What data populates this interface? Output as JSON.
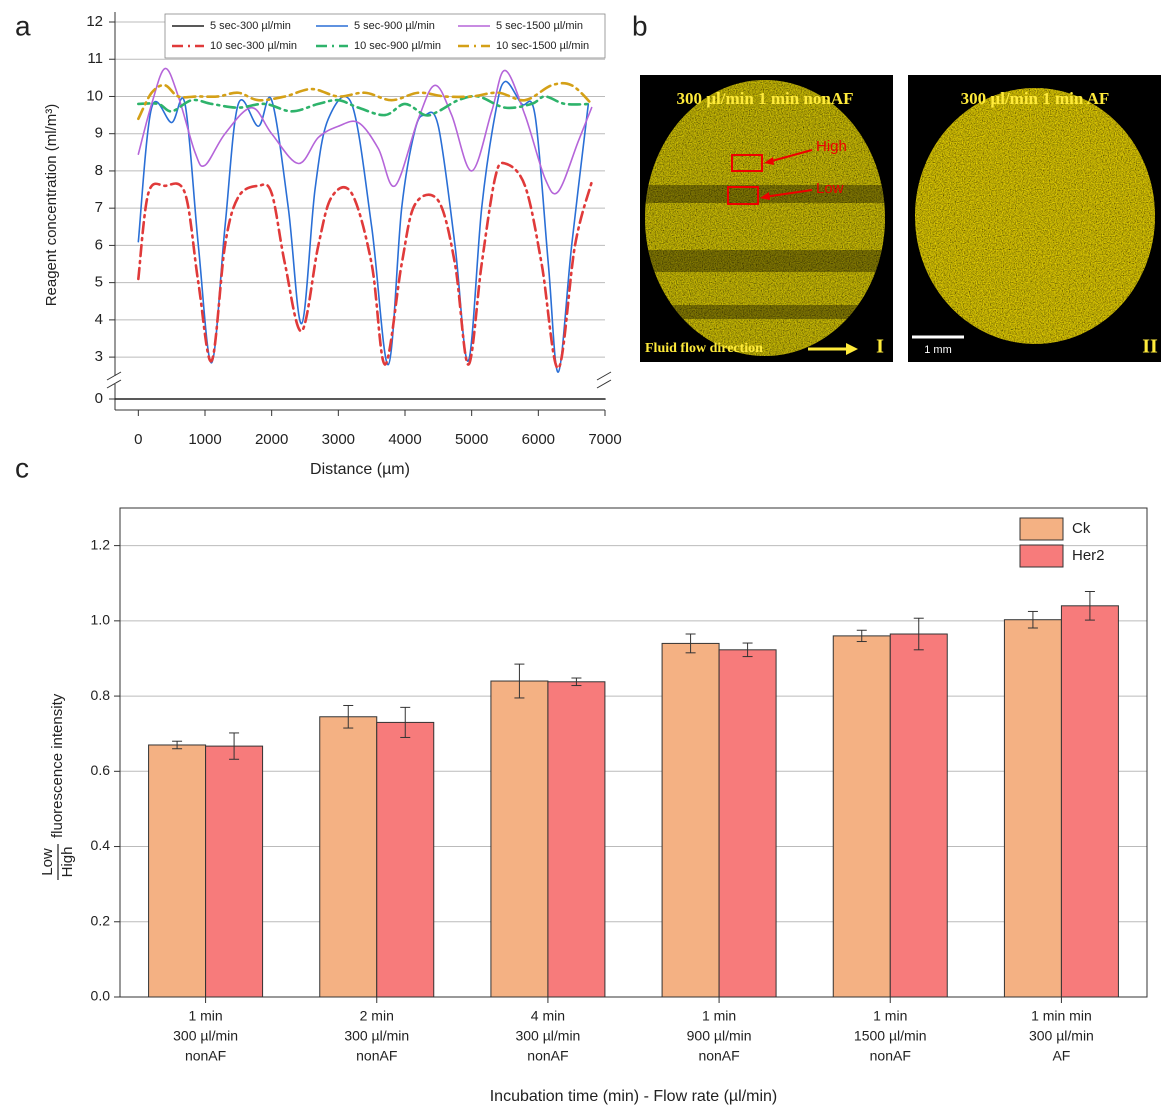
{
  "chart_data": [
    {
      "type": "line",
      "panel_label": "a",
      "xlabel": "Distance (µm)",
      "ylabel": "Reagent concentration (ml/m³)",
      "xlim": [
        -350,
        7000
      ],
      "xticks": [
        0,
        1000,
        2000,
        3000,
        4000,
        5000,
        6000,
        7000
      ],
      "ylim": [
        -0.3,
        12
      ],
      "y_break": [
        0.3,
        2.6
      ],
      "yticks": [
        0,
        3,
        4,
        5,
        6,
        7,
        8,
        9,
        10,
        11,
        12
      ],
      "grid": true,
      "legend": "top",
      "series": [
        {
          "name": "5 sec-300 µl/min",
          "color": "#222222",
          "dash": "solid",
          "x": [
            -350,
            7000
          ],
          "values": [
            0,
            0
          ]
        },
        {
          "name": "5 sec-900 µl/min",
          "color": "#2a6fd6",
          "dash": "solid",
          "x": [
            0,
            200,
            500,
            700,
            900,
            1100,
            1300,
            1500,
            1800,
            2000,
            2250,
            2450,
            2650,
            2850,
            3200,
            3500,
            3750,
            3950,
            4150,
            4300,
            4500,
            4750,
            4950,
            5150,
            5350,
            5500,
            5750,
            5950,
            6150,
            6300,
            6500,
            6750
          ],
          "values": [
            6.1,
            9.7,
            9.3,
            9.8,
            6.0,
            2.85,
            6.5,
            9.8,
            9.2,
            9.9,
            7.0,
            3.9,
            7.5,
            9.4,
            9.8,
            6.5,
            2.8,
            7.0,
            9.1,
            9.5,
            9.2,
            6.0,
            2.9,
            7.0,
            9.5,
            10.4,
            9.8,
            9.5,
            5.5,
            2.6,
            6.0,
            9.8
          ]
        },
        {
          "name": "5 sec-1500 µl/min",
          "color": "#b565d9",
          "dash": "solid",
          "x": [
            0,
            200,
            400,
            600,
            850,
            1000,
            1300,
            1700,
            2000,
            2400,
            2700,
            3000,
            3300,
            3600,
            3850,
            4200,
            4450,
            4700,
            5000,
            5300,
            5500,
            5800,
            6100,
            6300,
            6600,
            6800
          ],
          "values": [
            8.45,
            9.8,
            10.75,
            10.0,
            8.5,
            8.15,
            9.0,
            9.7,
            9.0,
            8.2,
            8.9,
            9.2,
            9.3,
            8.6,
            7.6,
            9.4,
            10.3,
            9.5,
            8.0,
            9.6,
            10.7,
            9.5,
            7.8,
            7.45,
            8.8,
            9.7
          ]
        },
        {
          "name": "10 sec-300 µl/min",
          "color": "#e03a3a",
          "dash": "dashed",
          "x": [
            0,
            150,
            400,
            700,
            900,
            1100,
            1300,
            1500,
            1800,
            2000,
            2200,
            2450,
            2700,
            2900,
            3200,
            3500,
            3700,
            3950,
            4150,
            4500,
            4750,
            4950,
            5150,
            5350,
            5500,
            5800,
            6050,
            6300,
            6550,
            6800
          ],
          "values": [
            5.1,
            7.4,
            7.6,
            7.4,
            5.0,
            2.9,
            6.0,
            7.3,
            7.6,
            7.4,
            5.5,
            3.7,
            6.0,
            7.3,
            7.4,
            5.5,
            2.8,
            5.5,
            7.1,
            7.2,
            5.5,
            2.8,
            5.5,
            7.8,
            8.2,
            7.6,
            5.5,
            2.7,
            6.0,
            7.7
          ]
        },
        {
          "name": "10 sec-900 µl/min",
          "color": "#2eb36b",
          "dash": "dashed",
          "x": [
            0,
            300,
            500,
            800,
            1100,
            1500,
            1900,
            2300,
            2700,
            3000,
            3300,
            3700,
            4000,
            4300,
            4500,
            4800,
            5100,
            5500,
            5900,
            6100,
            6400,
            6800
          ],
          "values": [
            9.8,
            9.8,
            9.6,
            9.9,
            9.8,
            9.7,
            9.8,
            9.6,
            9.8,
            9.9,
            9.7,
            9.5,
            9.8,
            9.5,
            9.6,
            9.9,
            10.0,
            9.7,
            9.8,
            10.0,
            9.8,
            9.8
          ]
        },
        {
          "name": "10 sec-1500 µl/min",
          "color": "#d4a017",
          "dash": "dashed",
          "x": [
            0,
            200,
            400,
            600,
            900,
            1200,
            1500,
            1800,
            2200,
            2600,
            3000,
            3400,
            3800,
            4200,
            4600,
            5000,
            5400,
            5800,
            6200,
            6500,
            6800
          ],
          "values": [
            9.4,
            10.1,
            10.3,
            10.0,
            10.0,
            10.0,
            10.1,
            9.9,
            10.0,
            10.2,
            10.0,
            10.1,
            9.9,
            10.1,
            10.0,
            10.0,
            10.1,
            9.9,
            10.3,
            10.3,
            9.8
          ]
        }
      ]
    },
    {
      "type": "bar",
      "panel_label": "c",
      "xlabel": "Incubation time (min) - Flow rate (µl/min)",
      "ylabel": {
        "numerator": "Low",
        "denominator": "High",
        "text": "fluorescence intensity"
      },
      "categories": [
        [
          "1 min",
          "300 µl/min",
          "nonAF"
        ],
        [
          "2 min",
          "300 µl/min",
          "nonAF"
        ],
        [
          "4 min",
          "300 µl/min",
          "nonAF"
        ],
        [
          "1 min",
          "900 µl/min",
          "nonAF"
        ],
        [
          "1 min",
          "1500 µl/min",
          "nonAF"
        ],
        [
          "1 min min",
          "300 µl/min",
          "AF"
        ]
      ],
      "ylim": [
        0,
        1.3
      ],
      "yticks": [
        {
          "value": 0,
          "label": "0.0"
        },
        {
          "value": 0.2,
          "label": "0.2"
        },
        {
          "value": 0.4,
          "label": "0.4"
        },
        {
          "value": 0.6,
          "label": "0.6"
        },
        {
          "value": 0.8,
          "label": "0.8"
        },
        {
          "value": 1,
          "label": "1.0"
        },
        {
          "value": 1.2,
          "label": "1.2"
        }
      ],
      "grid": true,
      "legend": "top-right",
      "series": [
        {
          "name": "Ck",
          "color": "#f4b183",
          "values": [
            0.67,
            0.745,
            0.84,
            0.94,
            0.96,
            1.003
          ],
          "errors": [
            0.01,
            0.03,
            0.045,
            0.025,
            0.015,
            0.022
          ]
        },
        {
          "name": "Her2",
          "color": "#f77b7b",
          "values": [
            0.667,
            0.73,
            0.838,
            0.923,
            0.965,
            1.04
          ],
          "errors": [
            0.035,
            0.04,
            0.01,
            0.018,
            0.042,
            0.038
          ]
        }
      ]
    }
  ],
  "images": {
    "panel_label": "b",
    "panels": [
      {
        "title": "300 µl/min 1 min nonAF",
        "regions": [
          "High",
          "Low"
        ],
        "caption": "Fluid flow direction",
        "numeral": "I"
      },
      {
        "title": "300 µl/min 1 min AF",
        "scale_bar": "1 mm",
        "numeral": "II"
      }
    ]
  }
}
